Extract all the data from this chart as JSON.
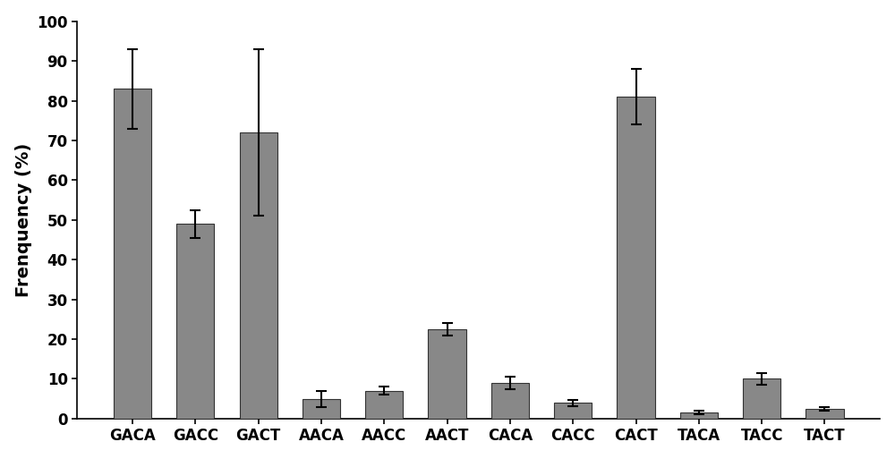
{
  "categories": [
    "GACA",
    "GACC",
    "GACT",
    "AACA",
    "AACC",
    "AACT",
    "CACA",
    "CACC",
    "CACT",
    "TACA",
    "TACC",
    "TACT"
  ],
  "values": [
    83,
    49,
    72,
    5,
    7,
    22.5,
    9,
    4,
    81,
    1.5,
    10,
    2.5
  ],
  "errors": [
    10,
    3.5,
    21,
    2,
    1,
    1.5,
    1.5,
    0.8,
    7,
    0.5,
    1.5,
    0.5
  ],
  "bar_color": "#888888",
  "edge_color": "#333333",
  "ylabel": "Frenquency (%)",
  "ylim": [
    0,
    100
  ],
  "yticks": [
    0,
    10,
    20,
    30,
    40,
    50,
    60,
    70,
    80,
    90,
    100
  ],
  "bar_width": 0.6,
  "background_color": "#ffffff",
  "ylabel_fontsize": 14,
  "tick_fontsize": 12,
  "xlabel_fontsize": 12,
  "capsize": 4,
  "elinewidth": 1.5,
  "ecapthick": 1.5
}
